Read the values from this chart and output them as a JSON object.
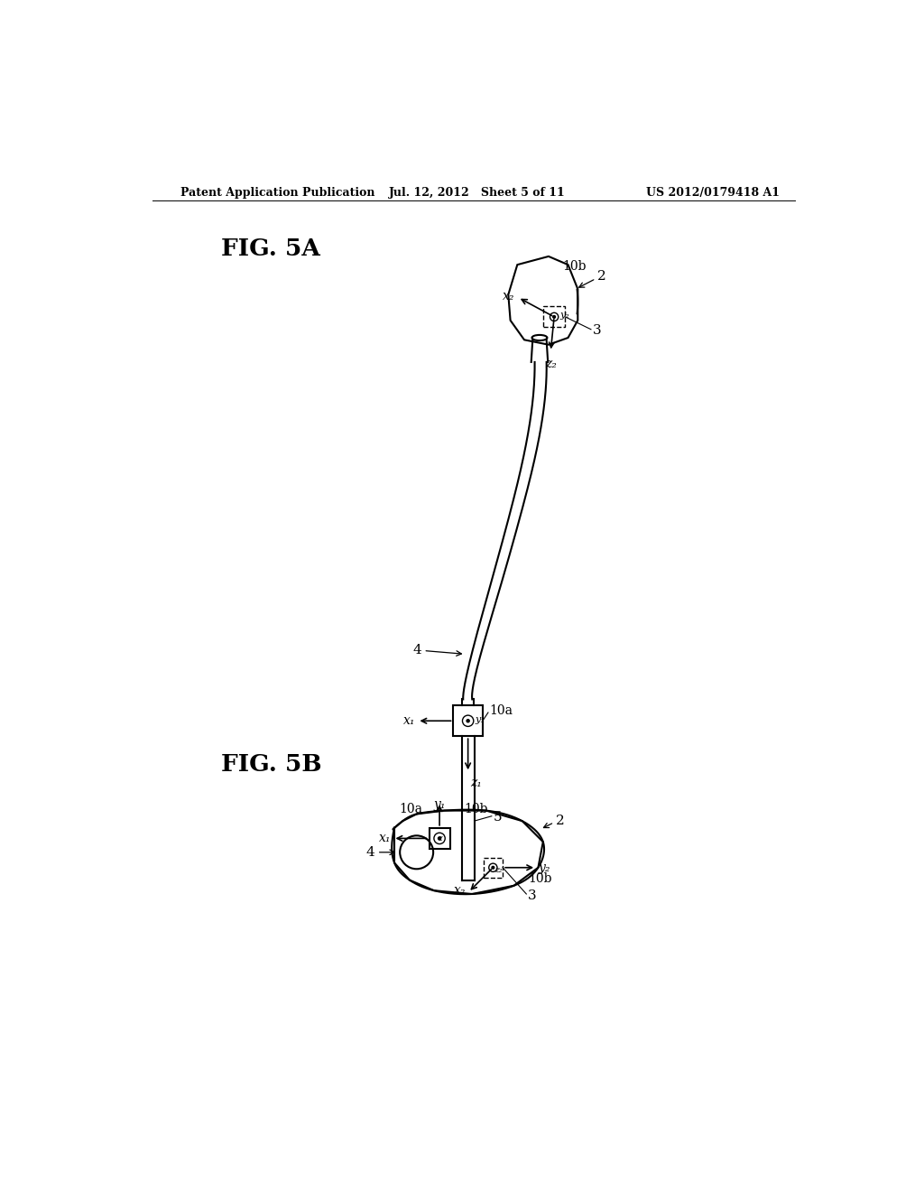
{
  "bg_color": "#ffffff",
  "header_left": "Patent Application Publication",
  "header_mid": "Jul. 12, 2012   Sheet 5 of 11",
  "header_right": "US 2012/0179418 A1",
  "fig5a_label": "FIG. 5A",
  "fig5b_label": "FIG. 5B",
  "label_color": "#000000",
  "line_color": "#000000"
}
